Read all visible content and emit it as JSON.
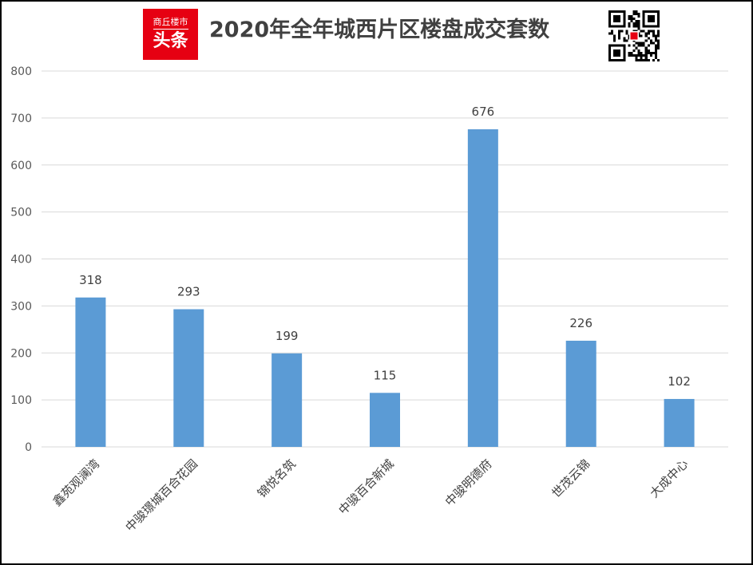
{
  "header": {
    "logo_top": "商丘楼市",
    "logo_main": "头条",
    "qr_label": "商丘楼市头条二维码"
  },
  "chart_data": {
    "type": "bar",
    "title": "2020年全年城西片区楼盘成交套数",
    "categories": [
      "鑫苑观澜湾",
      "中骏璟城百合花园",
      "锦悦名筑",
      "中骏百合新城",
      "中骏明德府",
      "世茂云锦",
      "大成中心"
    ],
    "values": [
      318,
      293,
      199,
      115,
      676,
      226,
      102
    ],
    "yticks": [
      0,
      100,
      200,
      300,
      400,
      500,
      600,
      700,
      800
    ],
    "ylim": [
      0,
      800
    ],
    "xlabel": "",
    "ylabel": "",
    "grid": true,
    "legend": "none",
    "colors": {
      "bar": "#5b9bd5",
      "grid": "#d9d9d9"
    }
  }
}
